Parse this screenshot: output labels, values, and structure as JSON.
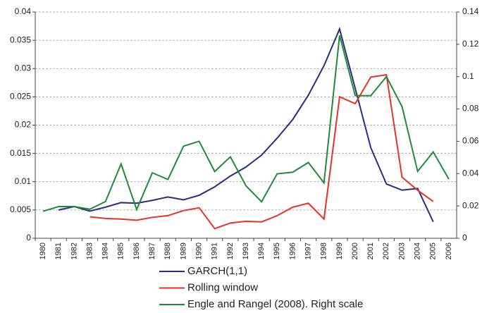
{
  "chart_data": {
    "type": "line",
    "categories": [
      "1980",
      "1981",
      "1982",
      "1983",
      "1984",
      "1985",
      "1986",
      "1987",
      "1988",
      "1989",
      "1990",
      "1991",
      "1992",
      "1993",
      "1994",
      "1995",
      "1996",
      "1997",
      "1998",
      "1999",
      "2000",
      "2001",
      "2002",
      "2003",
      "2004",
      "2005",
      "2006"
    ],
    "series": [
      {
        "name": "GARCH(1,1)",
        "color": "#2b2d7a",
        "values": [
          null,
          0.005,
          0.0056,
          0.0048,
          0.0055,
          0.0063,
          0.0062,
          0.0067,
          0.0073,
          0.0068,
          0.0076,
          0.0091,
          0.011,
          0.0126,
          0.0147,
          0.0177,
          0.021,
          0.0253,
          0.0305,
          0.037,
          0.0265,
          0.016,
          0.0096,
          0.0085,
          0.0088,
          0.0029,
          null
        ]
      },
      {
        "name": "Rolling window",
        "color": "#e8312a",
        "values": [
          null,
          null,
          null,
          0.0038,
          0.0035,
          0.0034,
          0.0032,
          0.0037,
          0.004,
          0.0049,
          0.0054,
          0.0017,
          0.0027,
          0.003,
          0.0029,
          0.004,
          0.0055,
          0.0062,
          0.0034,
          0.025,
          0.0238,
          0.0285,
          0.0289,
          0.0108,
          0.0085,
          0.0065,
          null
        ]
      },
      {
        "name": "Engle and Rangel (2008). Right scale",
        "color": "#1f8a3c",
        "axis": "y2",
        "values": [
          0.0167,
          0.0196,
          0.0196,
          0.018,
          0.0227,
          0.046,
          0.0178,
          0.0405,
          0.0364,
          0.057,
          0.06,
          0.0413,
          0.0504,
          0.0325,
          0.0226,
          0.0399,
          0.0409,
          0.0469,
          0.0343,
          0.1255,
          0.0883,
          0.0882,
          0.1,
          0.0815,
          0.0414,
          0.0534,
          0.0366
        ]
      }
    ],
    "ylim": [
      0,
      0.04
    ],
    "yticks": [
      0,
      0.005,
      0.01,
      0.015,
      0.02,
      0.025,
      0.03,
      0.035,
      0.04
    ],
    "y2lim": [
      0,
      0.14
    ],
    "y2ticks": [
      0,
      0.02,
      0.04,
      0.06,
      0.08,
      0.1,
      0.12,
      0.14
    ],
    "grid": true
  }
}
